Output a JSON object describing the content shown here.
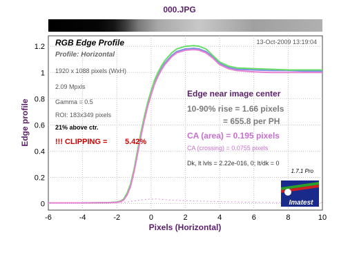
{
  "window": {
    "title": "000.JPG"
  },
  "chart_data": {
    "type": "line",
    "title": "RGB Edge Profile",
    "subtitle": "Profile: Horizontal",
    "timestamp": "13-Oct-2009 13:19:04",
    "xlabel": "Pixels (Horizontal)",
    "ylabel": "Edge profile",
    "xlim": [
      -6,
      10
    ],
    "ylim": [
      -0.05,
      1.28
    ],
    "xticks": [
      -6,
      -4,
      -2,
      0,
      2,
      4,
      6,
      8,
      10
    ],
    "yticks": [
      0,
      0.2,
      0.4,
      0.6,
      0.8,
      1,
      1.2
    ],
    "xtick_labels": [
      "-6",
      "-4",
      "-2",
      "0",
      "2",
      "4",
      "6",
      "8",
      "10"
    ],
    "ytick_labels": [
      "0",
      "0.2",
      "0.4",
      "0.6",
      "0.8",
      "1",
      "1.2"
    ],
    "grid": true,
    "x": [
      -6,
      -4,
      -3,
      -2.5,
      -2,
      -1.8,
      -1.6,
      -1.4,
      -1.2,
      -1,
      -0.8,
      -0.6,
      -0.4,
      -0.2,
      0,
      0.2,
      0.4,
      0.6,
      0.8,
      1,
      1.2,
      1.5,
      2,
      2.5,
      2.8,
      3.2,
      3.6,
      4,
      4.5,
      5,
      6,
      7,
      8,
      9,
      10
    ],
    "series": [
      {
        "color": "#7b8fe8",
        "values": [
          0.005,
          0.005,
          0.006,
          0.007,
          0.01,
          0.015,
          0.03,
          0.07,
          0.14,
          0.25,
          0.38,
          0.52,
          0.64,
          0.75,
          0.84,
          0.92,
          0.98,
          1.03,
          1.07,
          1.1,
          1.13,
          1.16,
          1.18,
          1.185,
          1.18,
          1.16,
          1.12,
          1.07,
          1.04,
          1.025,
          1.02,
          1.015,
          1.015,
          1.01,
          1.01
        ]
      },
      {
        "color": "#66dd66",
        "values": [
          0.005,
          0.005,
          0.006,
          0.008,
          0.012,
          0.018,
          0.035,
          0.08,
          0.15,
          0.26,
          0.4,
          0.54,
          0.66,
          0.77,
          0.86,
          0.94,
          1.0,
          1.05,
          1.09,
          1.12,
          1.15,
          1.18,
          1.2,
          1.205,
          1.2,
          1.18,
          1.13,
          1.08,
          1.05,
          1.035,
          1.03,
          1.025,
          1.02,
          1.02,
          1.02
        ]
      },
      {
        "color": "#e87fd0",
        "values": [
          0.005,
          0.005,
          0.006,
          0.007,
          0.009,
          0.014,
          0.028,
          0.065,
          0.13,
          0.24,
          0.37,
          0.51,
          0.63,
          0.74,
          0.83,
          0.91,
          0.97,
          1.02,
          1.06,
          1.09,
          1.12,
          1.15,
          1.17,
          1.175,
          1.17,
          1.15,
          1.11,
          1.06,
          1.03,
          1.015,
          1.005,
          1.0,
          1.0,
          1.0,
          1.0
        ]
      },
      {
        "color": "#d98fd9",
        "dashed": true,
        "values": [
          0.005,
          0.005,
          0.006,
          0.006,
          0.007,
          0.008,
          0.01,
          0.012,
          0.016,
          0.02,
          0.024,
          0.028,
          0.03,
          0.032,
          0.034,
          0.035,
          0.034,
          0.032,
          0.03,
          0.028,
          0.026,
          0.024,
          0.022,
          0.02,
          0.019,
          0.018,
          0.016,
          0.015,
          0.013,
          0.012,
          0.01,
          0.009,
          0.008,
          0.007,
          0.007
        ]
      }
    ]
  },
  "info": {
    "pixels": "1920 x 1088 pixels (WxH)",
    "mpxls": "2.09 Mpxls",
    "gamma": "Gamma = 0.5",
    "roi": "ROI: 183x349 pixels",
    "above": "21% above ctr.",
    "clipping_label": "!!! CLIPPING =",
    "clipping_value": "5.42%"
  },
  "results": {
    "edge": "Edge near image center",
    "rise": "10-90% rise = 1.66 pixels",
    "per_ph": "= 655.8 per PH",
    "ca_area": "CA (area) = 0.195 pixels",
    "ca_crossing": "CA (crossing) = 0.0755 pixels",
    "dk": "Dk, lt lvls = 2.22e-016, 0;  lt/dk = 0"
  },
  "version": "1.7.1  Pro",
  "logo_text": "Imatest",
  "colors": {
    "title_purple": "#5a1e6a",
    "clip_red": "#cc0000",
    "ca_pink": "#c76fcf",
    "rise_gray": "#7a7a7a",
    "grid": "#bfbfbf"
  }
}
